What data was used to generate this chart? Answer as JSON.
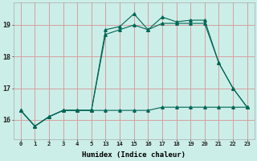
{
  "xlabel": "Humidex (Indice chaleur)",
  "bg_color": "#cceee8",
  "grid_color": "#d4a0a0",
  "line_color": "#006655",
  "ylim": [
    15.4,
    19.7
  ],
  "xlim": [
    -0.3,
    23.3
  ],
  "series1_x": [
    0,
    1,
    2,
    3,
    4,
    5,
    13,
    14,
    15,
    16,
    17,
    18,
    19,
    20,
    21,
    22,
    23
  ],
  "series1_y": [
    16.3,
    15.8,
    16.1,
    16.3,
    16.3,
    16.3,
    16.3,
    16.3,
    16.3,
    16.3,
    16.4,
    16.4,
    16.4,
    16.4,
    16.4,
    16.4,
    16.4
  ],
  "series2_x": [
    0,
    1,
    2,
    3,
    4,
    5,
    13,
    14,
    15,
    16,
    17,
    18,
    19,
    20,
    21,
    22,
    23
  ],
  "series2_y": [
    16.3,
    15.8,
    16.1,
    16.3,
    16.3,
    16.3,
    18.7,
    18.85,
    19.0,
    18.85,
    19.05,
    19.05,
    19.05,
    19.05,
    17.8,
    17.0,
    16.4
  ],
  "series3_x": [
    0,
    1,
    2,
    3,
    4,
    5,
    13,
    14,
    15,
    16,
    17,
    18,
    19,
    20,
    21,
    22,
    23
  ],
  "series3_y": [
    16.3,
    15.8,
    16.1,
    16.3,
    16.3,
    16.3,
    18.85,
    18.95,
    19.35,
    18.85,
    19.25,
    19.1,
    19.15,
    19.15,
    17.8,
    17.0,
    16.4
  ],
  "xticks": [
    0,
    1,
    2,
    3,
    4,
    5,
    13,
    14,
    15,
    16,
    17,
    18,
    19,
    20,
    21,
    22,
    23
  ],
  "xtick_labels": [
    "0",
    "1",
    "2",
    "3",
    "4",
    "5",
    "13",
    "14",
    "15",
    "16",
    "17",
    "18",
    "19",
    "20",
    "21",
    "22",
    "23"
  ],
  "yticks": [
    16,
    17,
    18,
    19
  ],
  "ytick_labels": [
    "16",
    "17",
    "18",
    "19"
  ]
}
